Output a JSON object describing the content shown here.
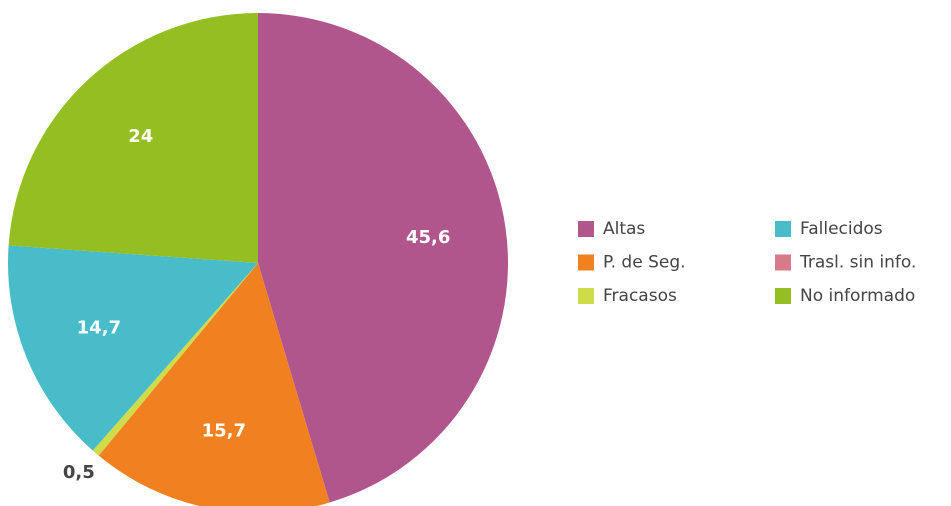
{
  "chart_data": {
    "type": "pie",
    "categories": [
      "Altas",
      "P. de Seg.",
      "Fracasos",
      "Fallecidos",
      "Trasl. sin info.",
      "No informado"
    ],
    "values": [
      45.6,
      15.7,
      0.5,
      14.7,
      0,
      24
    ],
    "value_labels": [
      "45,6",
      "15,7",
      "0,5",
      "14,7",
      null,
      "24"
    ],
    "colors": [
      "#b0568c",
      "#f08020",
      "#cfdc4a",
      "#48bcc8",
      "#d97a8a",
      "#94be22"
    ]
  }
}
